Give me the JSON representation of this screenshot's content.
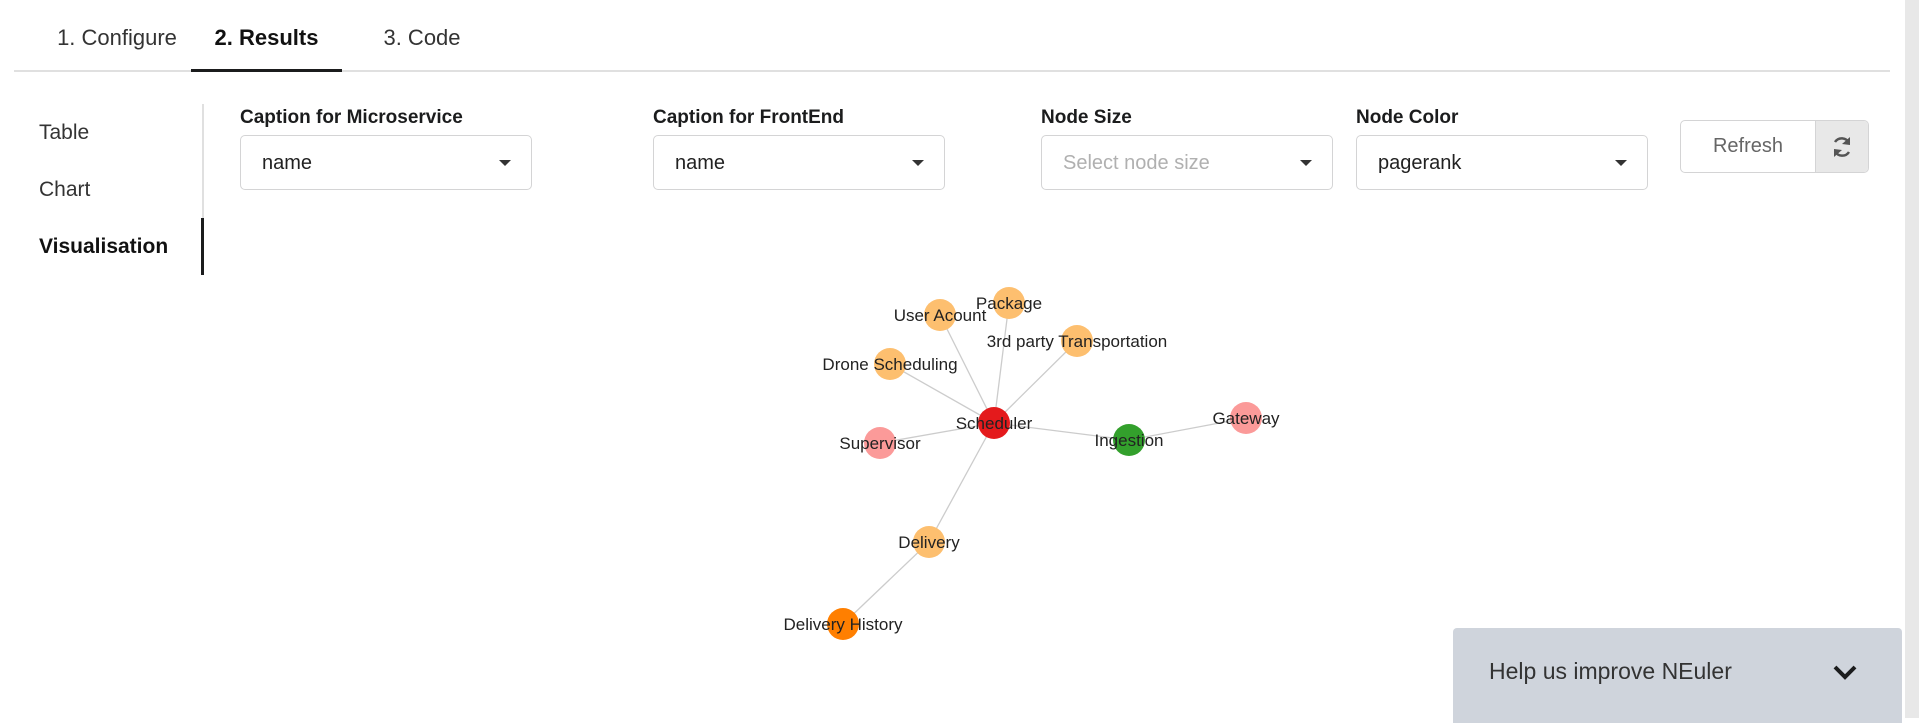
{
  "tabs": [
    {
      "label": "1. Configure"
    },
    {
      "label": "2. Results"
    },
    {
      "label": "3. Code"
    }
  ],
  "sidebar": {
    "items": [
      {
        "label": "Table"
      },
      {
        "label": "Chart"
      },
      {
        "label": "Visualisation"
      }
    ]
  },
  "controls": {
    "caption_microservice": {
      "label": "Caption for Microservice",
      "value": "name"
    },
    "caption_frontend": {
      "label": "Caption for FrontEnd",
      "value": "name"
    },
    "node_size": {
      "label": "Node Size",
      "placeholder": "Select node size"
    },
    "node_color": {
      "label": "Node Color",
      "value": "pagerank"
    },
    "refresh_label": "Refresh"
  },
  "graph": {
    "nodes": [
      {
        "id": "scheduler",
        "label": "Scheduler",
        "color": "#e41a1c"
      },
      {
        "id": "user_acount",
        "label": "User Acount",
        "color": "#fdbf6f"
      },
      {
        "id": "package",
        "label": "Package",
        "color": "#fdbf6f"
      },
      {
        "id": "third_party",
        "label": "3rd party Transportation",
        "color": "#fdbf6f"
      },
      {
        "id": "drone_scheduling",
        "label": "Drone Scheduling",
        "color": "#fdbf6f"
      },
      {
        "id": "supervisor",
        "label": "Supervisor",
        "color": "#fb9a99"
      },
      {
        "id": "ingestion",
        "label": "Ingestion",
        "color": "#33a02c"
      },
      {
        "id": "gateway",
        "label": "Gateway",
        "color": "#fb9a99"
      },
      {
        "id": "delivery",
        "label": "Delivery",
        "color": "#fdbf6f"
      },
      {
        "id": "delivery_history",
        "label": "Delivery History",
        "color": "#ff7f00"
      }
    ],
    "edges": [
      [
        "scheduler",
        "user_acount"
      ],
      [
        "scheduler",
        "package"
      ],
      [
        "scheduler",
        "third_party"
      ],
      [
        "scheduler",
        "drone_scheduling"
      ],
      [
        "scheduler",
        "supervisor"
      ],
      [
        "scheduler",
        "ingestion"
      ],
      [
        "ingestion",
        "gateway"
      ],
      [
        "scheduler",
        "delivery"
      ],
      [
        "delivery",
        "delivery_history"
      ]
    ]
  },
  "feedback": {
    "text": "Help us improve NEuler"
  }
}
